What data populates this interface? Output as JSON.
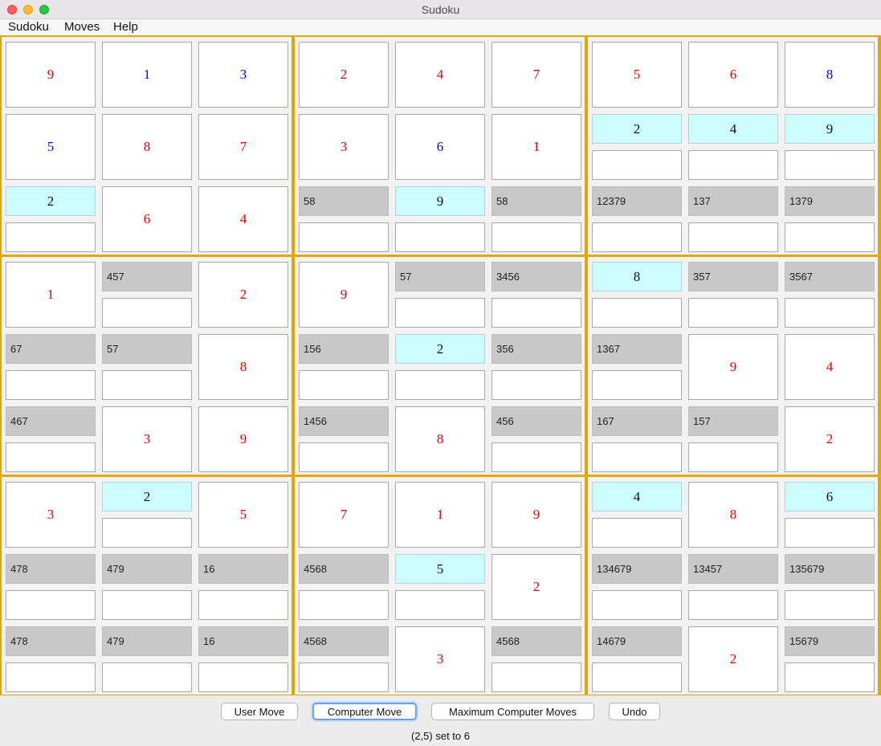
{
  "window": {
    "title": "Sudoku"
  },
  "menu": [
    "Sudoku",
    "Moves",
    "Help"
  ],
  "grid": [
    [
      {
        "v": "9",
        "c": "red"
      },
      {
        "v": "1",
        "c": "blue"
      },
      {
        "v": "3",
        "c": "blue"
      },
      {
        "v": "2",
        "c": "red"
      },
      {
        "v": "4",
        "c": "red"
      },
      {
        "v": "7",
        "c": "red"
      },
      {
        "v": "5",
        "c": "red"
      },
      {
        "v": "6",
        "c": "red"
      },
      {
        "v": "8",
        "c": "blue"
      }
    ],
    [
      {
        "v": "5",
        "c": "blue"
      },
      {
        "v": "8",
        "c": "red"
      },
      {
        "v": "7",
        "c": "red"
      },
      {
        "v": "3",
        "c": "red"
      },
      {
        "v": "6",
        "c": "blue"
      },
      {
        "v": "1",
        "c": "red"
      },
      {
        "s": "2"
      },
      {
        "s": "4"
      },
      {
        "s": "9"
      }
    ],
    [
      {
        "s": "2"
      },
      {
        "v": "6",
        "c": "red"
      },
      {
        "v": "4",
        "c": "red"
      },
      {
        "k": "58"
      },
      {
        "s": "9"
      },
      {
        "k": "58"
      },
      {
        "k": "12379"
      },
      {
        "k": "137"
      },
      {
        "k": "1379"
      }
    ],
    [
      {
        "v": "1",
        "c": "red"
      },
      {
        "k": "457"
      },
      {
        "v": "2",
        "c": "red"
      },
      {
        "v": "9",
        "c": "red"
      },
      {
        "k": "57"
      },
      {
        "k": "3456"
      },
      {
        "s": "8"
      },
      {
        "k": "357"
      },
      {
        "k": "3567"
      }
    ],
    [
      {
        "k": "67"
      },
      {
        "k": "57"
      },
      {
        "v": "8",
        "c": "red"
      },
      {
        "k": "156"
      },
      {
        "s": "2"
      },
      {
        "k": "356"
      },
      {
        "k": "1367"
      },
      {
        "v": "9",
        "c": "red"
      },
      {
        "v": "4",
        "c": "red"
      }
    ],
    [
      {
        "k": "467"
      },
      {
        "v": "3",
        "c": "red"
      },
      {
        "v": "9",
        "c": "red"
      },
      {
        "k": "1456"
      },
      {
        "v": "8",
        "c": "red"
      },
      {
        "k": "456"
      },
      {
        "k": "167"
      },
      {
        "k": "157"
      },
      {
        "v": "2",
        "c": "red"
      }
    ],
    [
      {
        "v": "3",
        "c": "red"
      },
      {
        "s": "2"
      },
      {
        "v": "5",
        "c": "red"
      },
      {
        "v": "7",
        "c": "red"
      },
      {
        "v": "1",
        "c": "red"
      },
      {
        "v": "9",
        "c": "red"
      },
      {
        "s": "4"
      },
      {
        "v": "8",
        "c": "red"
      },
      {
        "s": "6"
      }
    ],
    [
      {
        "k": "478"
      },
      {
        "k": "479"
      },
      {
        "k": "16"
      },
      {
        "k": "4568"
      },
      {
        "s": "5"
      },
      {
        "v": "2",
        "c": "red"
      },
      {
        "k": "134679"
      },
      {
        "k": "13457"
      },
      {
        "k": "135679"
      }
    ],
    [
      {
        "k": "478"
      },
      {
        "k": "479"
      },
      {
        "k": "16"
      },
      {
        "k": "4568"
      },
      {
        "v": "3",
        "c": "red"
      },
      {
        "k": "4568"
      },
      {
        "k": "14679"
      },
      {
        "v": "2",
        "c": "red"
      },
      {
        "k": "15679"
      }
    ]
  ],
  "colors": {
    "given_red": "#e60000",
    "given_blue": "#0000e6",
    "solved_bg": "#cdfcff",
    "candidate_bg": "#c8c8c8",
    "box_border": "#e0a800"
  },
  "buttons": [
    "User Move",
    "Computer Move",
    "Maximum Computer Moves",
    "Undo"
  ],
  "status": "(2,5) set to 6"
}
